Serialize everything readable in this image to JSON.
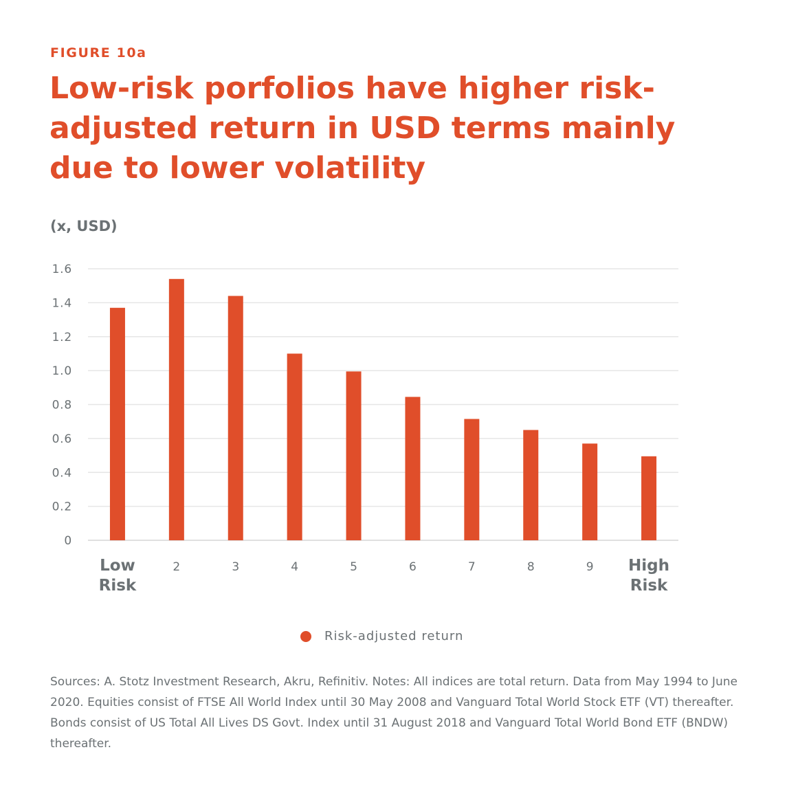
{
  "figure_label": "FIGURE 10a",
  "title": "Low-risk porfolios have higher risk-adjusted return in USD terms mainly due to lower volatility",
  "notes": "Sources: A. Stotz Investment Research, Akru, Refinitiv. Notes: All indices are total return. Data from May 1994 to June 2020. Equities consist of FTSE All World Index until 30 May 2008 and Vanguard Total World Stock ETF (VT) thereafter. Bonds consist of US Total All Lives DS Govt. Index until 31 August 2018 and Vanguard Total World Bond ETF (BNDW) thereafter.",
  "colors": {
    "accent": "#e04e2a",
    "text_gray": "#6b7174",
    "grid": "#e6e6e6"
  },
  "chart_data": {
    "type": "bar",
    "title": "",
    "xlabel": "",
    "ylabel": "(x, USD)",
    "ylim": [
      0,
      1.6
    ],
    "yticks": [
      "0",
      "0.2",
      "0.4",
      "0.6",
      "0.8",
      "1.0",
      "1.2",
      "1.4",
      "1.6"
    ],
    "categories": [
      [
        "Low",
        "Risk"
      ],
      [
        "2"
      ],
      [
        "3"
      ],
      [
        "4"
      ],
      [
        "5"
      ],
      [
        "6"
      ],
      [
        "7"
      ],
      [
        "8"
      ],
      [
        "9"
      ],
      [
        "High",
        "Risk"
      ]
    ],
    "series": [
      {
        "name": "Risk-adjusted return",
        "color": "#e04e2a",
        "values": [
          1.37,
          1.54,
          1.44,
          1.1,
          0.995,
          0.845,
          0.715,
          0.65,
          0.57,
          0.495
        ]
      }
    ],
    "grid": true,
    "legend": "bottom-center"
  }
}
